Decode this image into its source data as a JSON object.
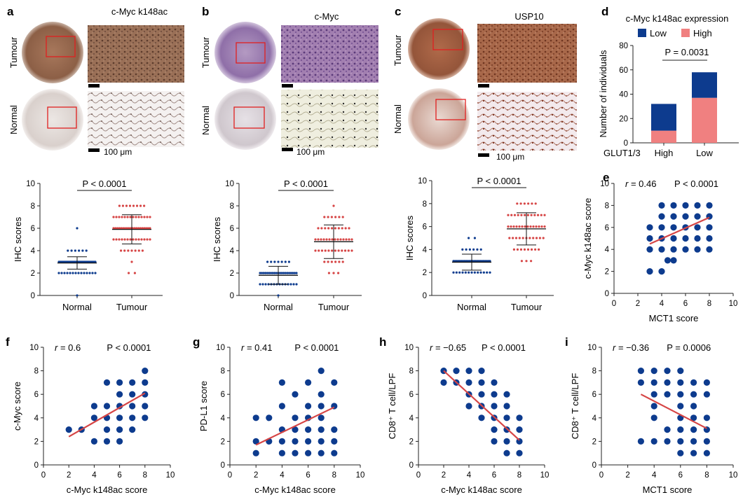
{
  "colors": {
    "blue": "#0d3b8e",
    "red": "#d64545",
    "pink": "#f08080",
    "axis": "#222222"
  },
  "panel_a": {
    "letter": "a",
    "title": "c-Myc k148ac",
    "row1": "Tumour",
    "row2": "Normal",
    "scale": "100 μm"
  },
  "panel_b": {
    "letter": "b",
    "title": "c-Myc",
    "row1": "Tumour",
    "row2": "Normal",
    "scale": "100 μm"
  },
  "panel_c": {
    "letter": "c",
    "title": "USP10",
    "row1": "Tumour",
    "row2": "Normal",
    "scale": "100 μm"
  },
  "panel_d": {
    "letter": "d",
    "title": "c-Myc k148ac expression",
    "legend_low": "Low",
    "legend_high": "High",
    "pvalue": "P = 0.0031",
    "ylabel": "Number of individuals",
    "group_label": "GLUT1/3"
  },
  "panel_e": {
    "letter": "e"
  },
  "panel_f": {
    "letter": "f"
  },
  "panel_g": {
    "letter": "g"
  },
  "panel_h": {
    "letter": "h"
  },
  "panel_i": {
    "letter": "i"
  },
  "chart_data": [
    {
      "id": "a-scores",
      "type": "scatter",
      "title": "",
      "xlabel": "",
      "ylabel": "IHC scores",
      "categories": [
        "Normal",
        "Tumour"
      ],
      "ylim": [
        0,
        10
      ],
      "yticks": [
        0,
        2,
        4,
        6,
        8,
        10
      ],
      "pvalue": "P < 0.0001",
      "groups": [
        {
          "name": "Normal",
          "mean": 2.9,
          "sd": 0.55,
          "points": [
            2,
            2,
            2,
            2,
            2,
            2,
            2,
            2,
            2,
            2,
            2,
            2,
            2,
            2,
            3,
            3,
            3,
            3,
            3,
            3,
            3,
            3,
            3,
            3,
            3,
            3,
            3,
            3,
            3,
            3,
            3,
            3,
            3,
            3,
            3,
            3,
            3,
            3,
            3,
            3,
            3,
            4,
            4,
            4,
            4,
            4,
            4,
            6,
            0
          ]
        },
        {
          "name": "Tumour",
          "mean": 5.9,
          "sd": 1.3,
          "points": [
            2,
            2,
            3,
            4,
            4,
            4,
            4,
            4,
            4,
            4,
            5,
            5,
            5,
            5,
            5,
            5,
            5,
            5,
            5,
            5,
            5,
            5,
            5,
            5,
            6,
            6,
            6,
            6,
            6,
            6,
            6,
            6,
            6,
            6,
            6,
            6,
            6,
            6,
            6,
            6,
            6,
            6,
            6,
            6,
            7,
            7,
            7,
            7,
            7,
            7,
            7,
            7,
            7,
            7,
            7,
            7,
            7,
            7,
            8,
            8,
            8,
            8,
            8,
            8,
            8,
            8
          ]
        }
      ]
    },
    {
      "id": "b-scores",
      "type": "scatter",
      "title": "",
      "xlabel": "",
      "ylabel": "IHC scores",
      "categories": [
        "Normal",
        "Tumour"
      ],
      "ylim": [
        0,
        10
      ],
      "yticks": [
        0,
        2,
        4,
        6,
        8,
        10
      ],
      "pvalue": "P < 0.0001",
      "groups": [
        {
          "name": "Normal",
          "mean": 1.8,
          "sd": 0.8,
          "points": [
            0,
            1,
            1,
            1,
            1,
            1,
            1,
            1,
            1,
            1,
            1,
            1,
            1,
            1,
            1,
            2,
            2,
            2,
            2,
            2,
            2,
            2,
            2,
            2,
            2,
            2,
            2,
            2,
            2,
            2,
            2,
            2,
            2,
            2,
            2,
            2,
            3,
            3,
            3,
            3,
            3,
            3,
            3
          ]
        },
        {
          "name": "Tumour",
          "mean": 4.8,
          "sd": 1.5,
          "points": [
            2,
            2,
            2,
            3,
            3,
            3,
            3,
            3,
            3,
            4,
            4,
            4,
            4,
            4,
            4,
            4,
            4,
            4,
            4,
            4,
            4,
            5,
            5,
            5,
            5,
            5,
            5,
            5,
            5,
            5,
            5,
            5,
            5,
            5,
            5,
            6,
            6,
            6,
            6,
            6,
            6,
            6,
            6,
            6,
            6,
            7,
            7,
            7,
            7,
            7,
            7,
            8
          ]
        }
      ]
    },
    {
      "id": "c-scores",
      "type": "scatter",
      "title": "",
      "xlabel": "",
      "ylabel": "IHC scores",
      "categories": [
        "Normal",
        "Tumour"
      ],
      "ylim": [
        0,
        10
      ],
      "yticks": [
        0,
        2,
        4,
        6,
        8,
        10
      ],
      "pvalue": "P < 0.0001",
      "groups": [
        {
          "name": "Normal",
          "mean": 2.9,
          "sd": 0.7,
          "points": [
            2,
            2,
            2,
            2,
            2,
            2,
            2,
            2,
            2,
            2,
            2,
            2,
            2,
            3,
            3,
            3,
            3,
            3,
            3,
            3,
            3,
            3,
            3,
            3,
            3,
            3,
            3,
            3,
            3,
            3,
            3,
            3,
            3,
            3,
            3,
            3,
            3,
            4,
            4,
            4,
            4,
            4,
            4,
            5,
            5
          ]
        },
        {
          "name": "Tumour",
          "mean": 5.8,
          "sd": 1.4,
          "points": [
            3,
            3,
            3,
            4,
            4,
            4,
            4,
            4,
            4,
            4,
            4,
            5,
            5,
            5,
            5,
            5,
            5,
            5,
            5,
            5,
            5,
            5,
            6,
            6,
            6,
            6,
            6,
            6,
            6,
            6,
            6,
            6,
            6,
            6,
            6,
            6,
            7,
            7,
            7,
            7,
            7,
            7,
            7,
            7,
            7,
            7,
            7,
            7,
            8,
            8,
            8,
            8,
            8,
            8
          ]
        }
      ]
    },
    {
      "id": "d-bars",
      "type": "bar",
      "title": "c-Myc k148ac expression",
      "xlabel": "GLUT1/3",
      "ylabel": "Number of individuals",
      "categories": [
        "High",
        "Low"
      ],
      "ylim": [
        0,
        80
      ],
      "yticks": [
        0,
        20,
        40,
        60,
        80
      ],
      "pvalue": "P = 0.0031",
      "series": [
        {
          "name": "Low",
          "values": [
            22,
            21
          ]
        },
        {
          "name": "High",
          "values": [
            10,
            37
          ]
        }
      ]
    },
    {
      "id": "e-corr",
      "type": "scatter",
      "xlabel": "MCT1 score",
      "ylabel": "c-Myc k148ac score",
      "xlim": [
        0,
        10
      ],
      "ylim": [
        0,
        10
      ],
      "ticks": [
        0,
        2,
        4,
        6,
        8,
        10
      ],
      "r": "0.46",
      "pvalue": "P < 0.0001",
      "fit": [
        [
          3,
          4.5
        ],
        [
          8,
          6.9
        ]
      ],
      "points": [
        [
          3,
          2
        ],
        [
          3,
          4
        ],
        [
          3,
          5
        ],
        [
          3,
          6
        ],
        [
          4,
          2
        ],
        [
          4,
          4
        ],
        [
          4,
          5
        ],
        [
          4,
          6
        ],
        [
          4,
          7
        ],
        [
          4,
          8
        ],
        [
          4.5,
          3
        ],
        [
          5,
          3
        ],
        [
          5,
          4
        ],
        [
          5,
          5
        ],
        [
          5,
          6
        ],
        [
          5,
          7
        ],
        [
          5,
          8
        ],
        [
          6,
          4
        ],
        [
          6,
          5
        ],
        [
          6,
          6
        ],
        [
          6,
          7
        ],
        [
          6,
          8
        ],
        [
          7,
          4
        ],
        [
          7,
          5
        ],
        [
          7,
          6
        ],
        [
          7,
          7
        ],
        [
          7,
          8
        ],
        [
          8,
          4
        ],
        [
          8,
          5
        ],
        [
          8,
          6
        ],
        [
          8,
          7
        ],
        [
          8,
          8
        ]
      ]
    },
    {
      "id": "f-corr",
      "type": "scatter",
      "xlabel": "c-Myc k148ac score",
      "ylabel": "c-Myc score",
      "xlim": [
        0,
        10
      ],
      "ylim": [
        0,
        10
      ],
      "ticks": [
        0,
        2,
        4,
        6,
        8,
        10
      ],
      "r": "0.6",
      "pvalue": "P < 0.0001",
      "fit": [
        [
          2,
          2.4
        ],
        [
          8,
          6.1
        ]
      ],
      "points": [
        [
          2,
          3
        ],
        [
          3,
          3
        ],
        [
          4,
          2
        ],
        [
          4,
          4
        ],
        [
          4,
          5
        ],
        [
          5,
          2
        ],
        [
          5,
          3
        ],
        [
          5,
          4
        ],
        [
          5,
          5
        ],
        [
          5,
          7
        ],
        [
          6,
          2
        ],
        [
          6,
          3
        ],
        [
          6,
          4
        ],
        [
          6,
          5
        ],
        [
          6,
          6
        ],
        [
          6,
          7
        ],
        [
          7,
          3
        ],
        [
          7,
          4
        ],
        [
          7,
          5
        ],
        [
          7,
          6
        ],
        [
          7,
          7
        ],
        [
          8,
          4
        ],
        [
          8,
          5
        ],
        [
          8,
          6
        ],
        [
          8,
          7
        ],
        [
          8,
          8
        ]
      ]
    },
    {
      "id": "g-corr",
      "type": "scatter",
      "xlabel": "c-Myc k148ac score",
      "ylabel": "PD-L1 score",
      "xlim": [
        0,
        10
      ],
      "ylim": [
        0,
        10
      ],
      "ticks": [
        0,
        2,
        4,
        6,
        8,
        10
      ],
      "r": "0.41",
      "pvalue": "P < 0.0001",
      "fit": [
        [
          2,
          1.7
        ],
        [
          8,
          4.9
        ]
      ],
      "points": [
        [
          2,
          1
        ],
        [
          2,
          2
        ],
        [
          2,
          4
        ],
        [
          3,
          2
        ],
        [
          3,
          4
        ],
        [
          4,
          1
        ],
        [
          4,
          2
        ],
        [
          4,
          3
        ],
        [
          4,
          5
        ],
        [
          4,
          7
        ],
        [
          5,
          1
        ],
        [
          5,
          2
        ],
        [
          5,
          3
        ],
        [
          5,
          4
        ],
        [
          5,
          6
        ],
        [
          6,
          1
        ],
        [
          6,
          2
        ],
        [
          6,
          3
        ],
        [
          6,
          4
        ],
        [
          6,
          5
        ],
        [
          6,
          7
        ],
        [
          7,
          1
        ],
        [
          7,
          2
        ],
        [
          7,
          3
        ],
        [
          7,
          4
        ],
        [
          7,
          5
        ],
        [
          7,
          6
        ],
        [
          7,
          8
        ],
        [
          8,
          1
        ],
        [
          8,
          2
        ],
        [
          8,
          3
        ],
        [
          8,
          5
        ],
        [
          8,
          7
        ]
      ]
    },
    {
      "id": "h-corr",
      "type": "scatter",
      "xlabel": "c-Myc k148ac score",
      "ylabel": "CD8⁺ T cell/LPF",
      "xlim": [
        0,
        10
      ],
      "ylim": [
        0,
        10
      ],
      "ticks": [
        0,
        2,
        4,
        6,
        8,
        10
      ],
      "r": "−0.65",
      "pvalue": "P < 0.0001",
      "fit": [
        [
          2,
          8
        ],
        [
          8,
          2.1
        ]
      ],
      "points": [
        [
          2,
          7
        ],
        [
          2,
          8
        ],
        [
          3,
          7
        ],
        [
          3,
          8
        ],
        [
          4,
          5
        ],
        [
          4,
          6
        ],
        [
          4,
          7
        ],
        [
          4,
          8
        ],
        [
          5,
          4
        ],
        [
          5,
          5
        ],
        [
          5,
          6
        ],
        [
          5,
          7
        ],
        [
          5,
          8
        ],
        [
          6,
          2
        ],
        [
          6,
          3
        ],
        [
          6,
          4
        ],
        [
          6,
          5
        ],
        [
          6,
          6
        ],
        [
          6,
          7
        ],
        [
          7,
          1
        ],
        [
          7,
          2
        ],
        [
          7,
          3
        ],
        [
          7,
          4
        ],
        [
          7,
          5
        ],
        [
          7,
          6
        ],
        [
          8,
          1
        ],
        [
          8,
          2
        ],
        [
          8,
          3
        ],
        [
          8,
          4
        ]
      ]
    },
    {
      "id": "i-corr",
      "type": "scatter",
      "xlabel": "MCT1 score",
      "ylabel": "CD8⁺ T cell/LPF",
      "xlim": [
        0,
        10
      ],
      "ylim": [
        0,
        10
      ],
      "ticks": [
        0,
        2,
        4,
        6,
        8,
        10
      ],
      "r": "−0.36",
      "pvalue": "P = 0.0006",
      "fit": [
        [
          3,
          6
        ],
        [
          8,
          3.1
        ]
      ],
      "points": [
        [
          3,
          2
        ],
        [
          3,
          7
        ],
        [
          3,
          8
        ],
        [
          4,
          2
        ],
        [
          4,
          4
        ],
        [
          4,
          5
        ],
        [
          4,
          6
        ],
        [
          4,
          7
        ],
        [
          4,
          8
        ],
        [
          5,
          2
        ],
        [
          5,
          3
        ],
        [
          5,
          6
        ],
        [
          5,
          7
        ],
        [
          5,
          8
        ],
        [
          6,
          1
        ],
        [
          6,
          2
        ],
        [
          6,
          3
        ],
        [
          6,
          4
        ],
        [
          6,
          5
        ],
        [
          6,
          6
        ],
        [
          6,
          7
        ],
        [
          6,
          8
        ],
        [
          7,
          1
        ],
        [
          7,
          2
        ],
        [
          7,
          3
        ],
        [
          7,
          4
        ],
        [
          7,
          5
        ],
        [
          7,
          6
        ],
        [
          7,
          7
        ],
        [
          8,
          1
        ],
        [
          8,
          2
        ],
        [
          8,
          3
        ],
        [
          8,
          4
        ],
        [
          8,
          6
        ],
        [
          8,
          7
        ]
      ]
    }
  ]
}
